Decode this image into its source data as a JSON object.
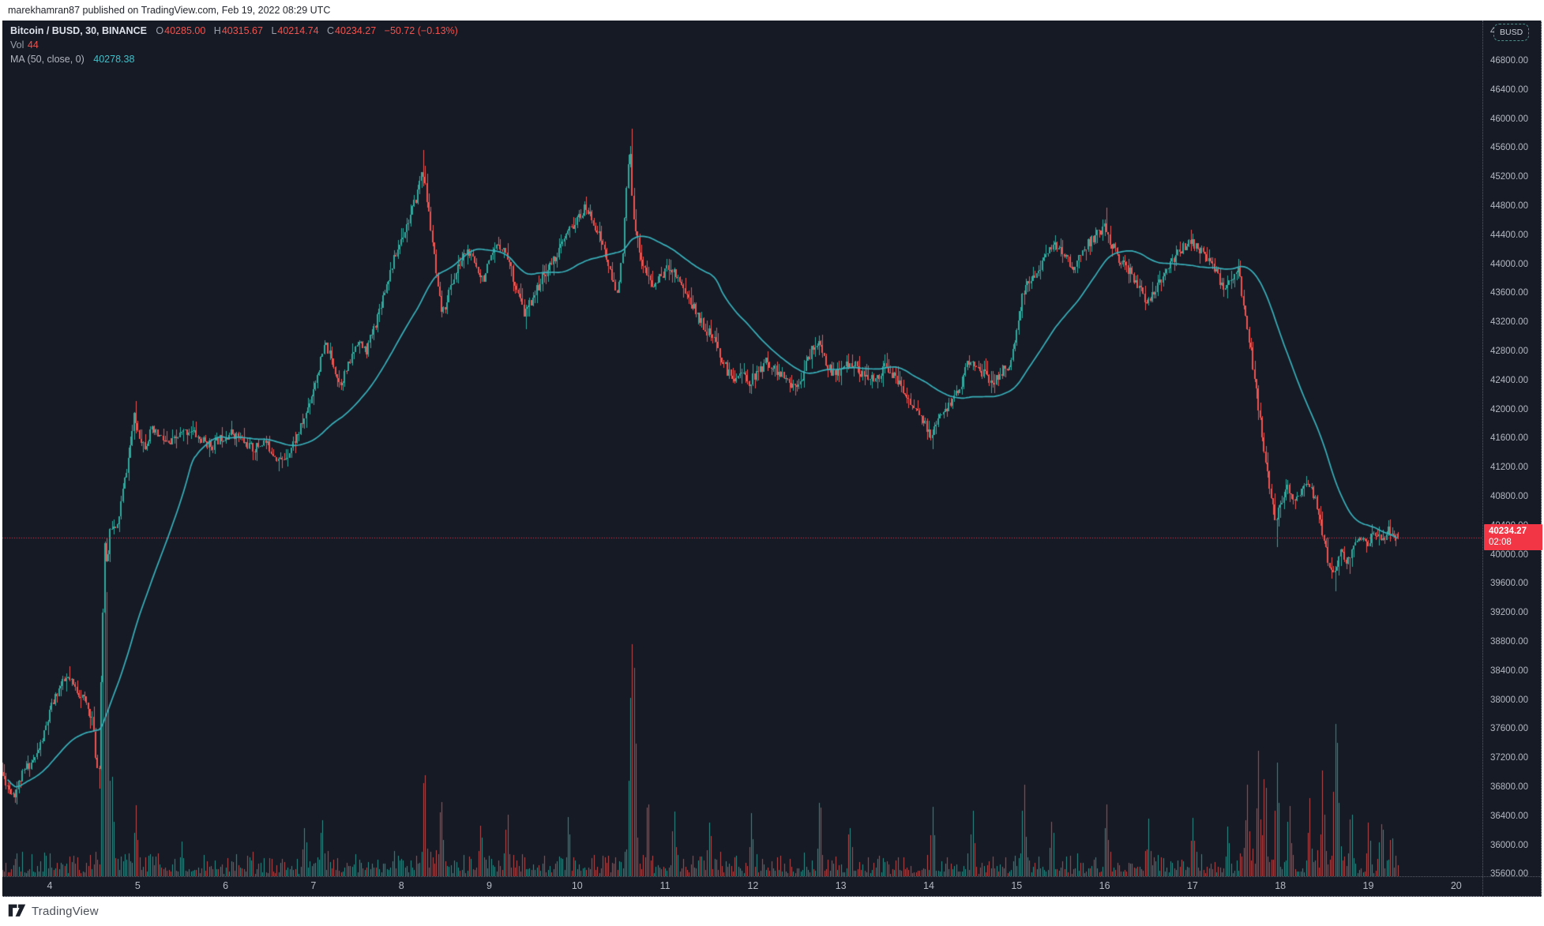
{
  "header": {
    "attribution": "marekhamran87 published on TradingView.com, Feb 19, 2022 08:29 UTC"
  },
  "legend": {
    "title": "Bitcoin / BUSD, 30, BINANCE",
    "ohlc": [
      {
        "k": "O",
        "v": "40285.00"
      },
      {
        "k": "H",
        "v": "40315.67"
      },
      {
        "k": "L",
        "v": "40214.74"
      },
      {
        "k": "C",
        "v": "40234.27"
      }
    ],
    "change": "−50.72 (−0.13%)",
    "vol_label": "Vol",
    "vol_value": "44",
    "ma_label": "MA (50, close, 0)",
    "ma_value": "40278.38"
  },
  "price_axis": {
    "currency": "BUSD",
    "current_price": "40234.27",
    "countdown": "02:08",
    "ticks": [
      "47200.00",
      "46800.00",
      "46400.00",
      "46000.00",
      "45600.00",
      "45200.00",
      "44800.00",
      "44400.00",
      "44000.00",
      "43600.00",
      "43200.00",
      "42800.00",
      "42400.00",
      "42000.00",
      "41600.00",
      "41200.00",
      "40800.00",
      "40400.00",
      "40000.00",
      "39600.00",
      "39200.00",
      "38800.00",
      "38400.00",
      "38000.00",
      "37600.00",
      "37200.00",
      "36800.00",
      "36400.00",
      "36000.00",
      "35600.00"
    ]
  },
  "time_axis": {
    "labels": [
      "4",
      "5",
      "6",
      "7",
      "8",
      "9",
      "10",
      "11",
      "12",
      "13",
      "14",
      "15",
      "16",
      "17",
      "18",
      "19",
      "20"
    ],
    "day_values": [
      4,
      5,
      6,
      7,
      8,
      9,
      10,
      11,
      12,
      13,
      14,
      15,
      16,
      17,
      18,
      19,
      20
    ]
  },
  "footer": {
    "brand": "TradingView"
  },
  "colors": {
    "chart_bg": "#151a25",
    "up": "#2fa99d",
    "down": "#ef5350",
    "vol_up": "rgba(47,169,157,0.85)",
    "vol_down": "rgba(239,83,80,0.80)",
    "ma_line": "#39b0ba",
    "price_line": "#f23645",
    "badge_bg": "#f23645",
    "axis_text": "#b4b8c1"
  },
  "chart_data": {
    "type": "candlestick+volume+ma",
    "symbol": "BTCBUSD",
    "interval_minutes": 30,
    "domain_days": [
      3.458,
      19.333
    ],
    "y_axis": {
      "ref_price": 46800,
      "tick_step": 400,
      "visible_min": 35570,
      "visible_max": 47350
    },
    "last_candle": {
      "o": 40285.0,
      "h": 40315.67,
      "l": 40214.74,
      "c": 40234.27
    },
    "current_price": 40234.27,
    "ma_period": 50,
    "ma_last_value": 40278.38,
    "current_volume": 44,
    "noise_seed": 11,
    "noise_amp": 70,
    "wick_amp": 150,
    "vol_base": 10,
    "price_path": [
      [
        3.42,
        37250
      ],
      [
        3.48,
        37000
      ],
      [
        3.55,
        36800
      ],
      [
        3.62,
        36700
      ],
      [
        3.7,
        36950
      ],
      [
        3.78,
        37100
      ],
      [
        3.86,
        37200
      ],
      [
        3.95,
        37500
      ],
      [
        4.04,
        37900
      ],
      [
        4.12,
        38150
      ],
      [
        4.22,
        38300
      ],
      [
        4.32,
        38150
      ],
      [
        4.42,
        38000
      ],
      [
        4.5,
        37750
      ],
      [
        4.55,
        37150
      ],
      [
        4.58,
        36950
      ],
      [
        4.61,
        38600
      ],
      [
        4.645,
        40100
      ],
      [
        4.68,
        39850
      ],
      [
        4.71,
        40450
      ],
      [
        4.78,
        40300
      ],
      [
        4.85,
        40850
      ],
      [
        4.92,
        41350
      ],
      [
        4.98,
        41900
      ],
      [
        5.04,
        41650
      ],
      [
        5.1,
        41500
      ],
      [
        5.18,
        41700
      ],
      [
        5.28,
        41620
      ],
      [
        5.38,
        41500
      ],
      [
        5.5,
        41650
      ],
      [
        5.62,
        41720
      ],
      [
        5.74,
        41580
      ],
      [
        5.86,
        41500
      ],
      [
        5.98,
        41620
      ],
      [
        6.1,
        41680
      ],
      [
        6.22,
        41560
      ],
      [
        6.34,
        41450
      ],
      [
        6.46,
        41560
      ],
      [
        6.58,
        41380
      ],
      [
        6.66,
        41280
      ],
      [
        6.76,
        41450
      ],
      [
        6.86,
        41700
      ],
      [
        6.94,
        41950
      ],
      [
        7.02,
        42300
      ],
      [
        7.1,
        42650
      ],
      [
        7.16,
        42900
      ],
      [
        7.24,
        42650
      ],
      [
        7.32,
        42350
      ],
      [
        7.42,
        42600
      ],
      [
        7.52,
        42950
      ],
      [
        7.62,
        42800
      ],
      [
        7.72,
        43150
      ],
      [
        7.82,
        43600
      ],
      [
        7.92,
        44000
      ],
      [
        8.02,
        44350
      ],
      [
        8.12,
        44650
      ],
      [
        8.2,
        44950
      ],
      [
        8.26,
        45350
      ],
      [
        8.31,
        44900
      ],
      [
        8.37,
        44350
      ],
      [
        8.44,
        43600
      ],
      [
        8.49,
        43300
      ],
      [
        8.57,
        43650
      ],
      [
        8.67,
        43950
      ],
      [
        8.76,
        44200
      ],
      [
        8.86,
        44000
      ],
      [
        8.95,
        43800
      ],
      [
        9.04,
        44050
      ],
      [
        9.13,
        44300
      ],
      [
        9.22,
        44150
      ],
      [
        9.32,
        43700
      ],
      [
        9.42,
        43300
      ],
      [
        9.52,
        43550
      ],
      [
        9.62,
        43800
      ],
      [
        9.72,
        44000
      ],
      [
        9.82,
        44200
      ],
      [
        9.92,
        44450
      ],
      [
        10.02,
        44600
      ],
      [
        10.12,
        44780
      ],
      [
        10.22,
        44550
      ],
      [
        10.32,
        44250
      ],
      [
        10.4,
        43850
      ],
      [
        10.47,
        43600
      ],
      [
        10.54,
        44100
      ],
      [
        10.59,
        45200
      ],
      [
        10.62,
        45550
      ],
      [
        10.655,
        44800
      ],
      [
        10.7,
        44350
      ],
      [
        10.78,
        43950
      ],
      [
        10.88,
        43680
      ],
      [
        10.98,
        43850
      ],
      [
        11.08,
        43980
      ],
      [
        11.18,
        43800
      ],
      [
        11.28,
        43550
      ],
      [
        11.38,
        43330
      ],
      [
        11.48,
        43120
      ],
      [
        11.58,
        42950
      ],
      [
        11.68,
        42650
      ],
      [
        11.78,
        42420
      ],
      [
        11.88,
        42520
      ],
      [
        11.98,
        42380
      ],
      [
        12.08,
        42500
      ],
      [
        12.18,
        42680
      ],
      [
        12.28,
        42540
      ],
      [
        12.38,
        42420
      ],
      [
        12.48,
        42320
      ],
      [
        12.58,
        42460
      ],
      [
        12.68,
        42800
      ],
      [
        12.76,
        42940
      ],
      [
        12.84,
        42680
      ],
      [
        12.94,
        42460
      ],
      [
        13.04,
        42560
      ],
      [
        13.14,
        42660
      ],
      [
        13.24,
        42520
      ],
      [
        13.34,
        42380
      ],
      [
        13.44,
        42460
      ],
      [
        13.54,
        42600
      ],
      [
        13.64,
        42420
      ],
      [
        13.74,
        42240
      ],
      [
        13.84,
        42040
      ],
      [
        13.94,
        41880
      ],
      [
        14.04,
        41620
      ],
      [
        14.1,
        41780
      ],
      [
        14.18,
        41920
      ],
      [
        14.28,
        42120
      ],
      [
        14.38,
        42320
      ],
      [
        14.48,
        42680
      ],
      [
        14.56,
        42600
      ],
      [
        14.66,
        42470
      ],
      [
        14.76,
        42380
      ],
      [
        14.86,
        42520
      ],
      [
        14.96,
        42660
      ],
      [
        15.04,
        43150
      ],
      [
        15.09,
        43620
      ],
      [
        15.16,
        43750
      ],
      [
        15.26,
        43920
      ],
      [
        15.36,
        44120
      ],
      [
        15.46,
        44260
      ],
      [
        15.56,
        44120
      ],
      [
        15.66,
        43940
      ],
      [
        15.76,
        44160
      ],
      [
        15.86,
        44320
      ],
      [
        15.96,
        44430
      ],
      [
        16.02,
        44520
      ],
      [
        16.1,
        44280
      ],
      [
        16.2,
        44050
      ],
      [
        16.3,
        43920
      ],
      [
        16.4,
        43720
      ],
      [
        16.5,
        43460
      ],
      [
        16.6,
        43620
      ],
      [
        16.7,
        43860
      ],
      [
        16.8,
        44060
      ],
      [
        16.9,
        44220
      ],
      [
        16.99,
        44330
      ],
      [
        17.08,
        44230
      ],
      [
        17.18,
        44120
      ],
      [
        17.28,
        43920
      ],
      [
        17.38,
        43640
      ],
      [
        17.46,
        43820
      ],
      [
        17.54,
        43930
      ],
      [
        17.61,
        43420
      ],
      [
        17.68,
        42850
      ],
      [
        17.75,
        42250
      ],
      [
        17.82,
        41550
      ],
      [
        17.89,
        40950
      ],
      [
        17.96,
        40480
      ],
      [
        18.03,
        40700
      ],
      [
        18.1,
        40920
      ],
      [
        18.18,
        40760
      ],
      [
        18.26,
        40870
      ],
      [
        18.33,
        41020
      ],
      [
        18.41,
        40800
      ],
      [
        18.48,
        40430
      ],
      [
        18.56,
        39950
      ],
      [
        18.63,
        39720
      ],
      [
        18.7,
        40020
      ],
      [
        18.78,
        39900
      ],
      [
        18.86,
        40120
      ],
      [
        18.94,
        40260
      ],
      [
        19.02,
        40140
      ],
      [
        19.1,
        40320
      ],
      [
        19.18,
        40210
      ],
      [
        19.26,
        40370
      ],
      [
        19.333,
        40234.27
      ]
    ],
    "wick_events": [
      [
        3.6,
        36580,
        "l"
      ],
      [
        4.57,
        36780,
        "l"
      ],
      [
        4.98,
        42120,
        "h"
      ],
      [
        8.26,
        45570,
        "h"
      ],
      [
        9.42,
        43100,
        "l"
      ],
      [
        10.62,
        45865,
        "h"
      ],
      [
        12.76,
        43020,
        "h"
      ],
      [
        14.04,
        41450,
        "l"
      ],
      [
        16.02,
        44780,
        "h"
      ],
      [
        17.96,
        40100,
        "l"
      ],
      [
        18.63,
        39500,
        "l"
      ],
      [
        18.8,
        39740,
        "l"
      ],
      [
        19.26,
        40480,
        "h"
      ]
    ],
    "volume_spikes": [
      [
        4.6,
        140
      ],
      [
        4.63,
        320
      ],
      [
        4.66,
        180
      ],
      [
        4.71,
        120
      ],
      [
        4.98,
        70
      ],
      [
        5.5,
        40
      ],
      [
        6.9,
        55
      ],
      [
        7.1,
        60
      ],
      [
        8.26,
        125
      ],
      [
        8.45,
        90
      ],
      [
        8.9,
        60
      ],
      [
        9.2,
        70
      ],
      [
        9.9,
        55
      ],
      [
        10.6,
        160
      ],
      [
        10.63,
        200
      ],
      [
        10.66,
        150
      ],
      [
        10.8,
        90
      ],
      [
        11.1,
        70
      ],
      [
        11.5,
        60
      ],
      [
        11.98,
        75
      ],
      [
        12.76,
        80
      ],
      [
        13.1,
        50
      ],
      [
        14.04,
        80
      ],
      [
        14.5,
        70
      ],
      [
        15.08,
        110
      ],
      [
        15.4,
        60
      ],
      [
        16.02,
        80
      ],
      [
        16.5,
        60
      ],
      [
        17.0,
        65
      ],
      [
        17.4,
        60
      ],
      [
        17.62,
        100
      ],
      [
        17.75,
        135
      ],
      [
        17.82,
        120
      ],
      [
        17.96,
        140
      ],
      [
        18.1,
        80
      ],
      [
        18.33,
        90
      ],
      [
        18.48,
        110
      ],
      [
        18.62,
        155
      ],
      [
        18.65,
        120
      ],
      [
        18.8,
        70
      ],
      [
        19.0,
        55
      ],
      [
        19.15,
        60
      ],
      [
        19.26,
        45
      ]
    ]
  }
}
